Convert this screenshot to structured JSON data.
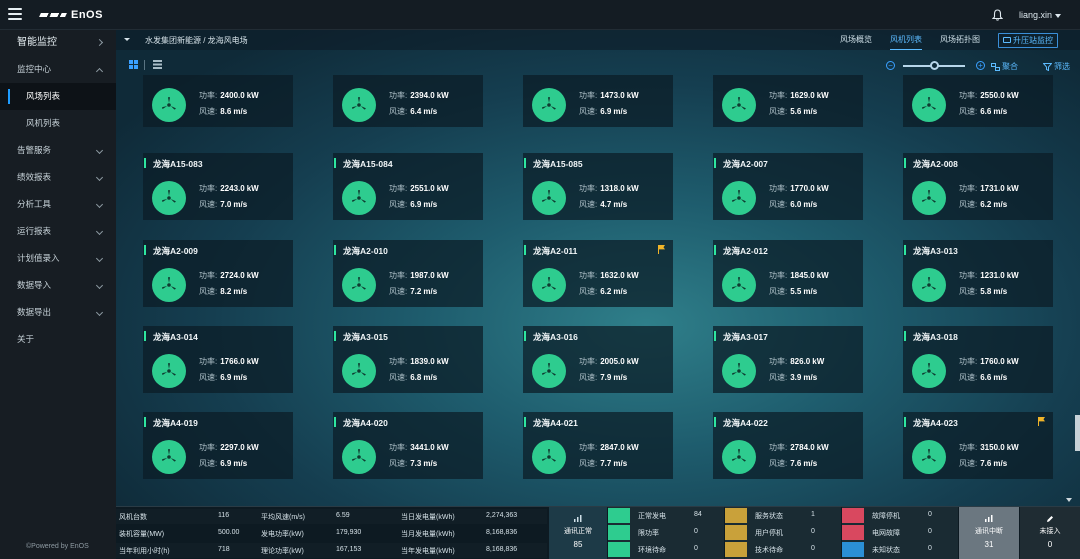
{
  "app": {
    "logo": "EnOS",
    "user": "liang.xin"
  },
  "sidebar": {
    "items": [
      {
        "label": "智能监控",
        "level": "top",
        "chevron": "right"
      },
      {
        "label": "监控中心",
        "level": "group",
        "chevron": "up"
      },
      {
        "label": "风场列表",
        "level": "sub",
        "active": true
      },
      {
        "label": "风机列表",
        "level": "sub"
      },
      {
        "label": "告警服务",
        "level": "group",
        "chevron": "down"
      },
      {
        "label": "绩效报表",
        "level": "group",
        "chevron": "down"
      },
      {
        "label": "分析工具",
        "level": "group",
        "chevron": "down"
      },
      {
        "label": "运行报表",
        "level": "group",
        "chevron": "down"
      },
      {
        "label": "计划值录入",
        "level": "group",
        "chevron": "down"
      },
      {
        "label": "数据导入",
        "level": "group",
        "chevron": "down"
      },
      {
        "label": "数据导出",
        "level": "group",
        "chevron": "down"
      },
      {
        "label": "关于",
        "level": "group"
      }
    ],
    "powered": "©Powered by EnOS"
  },
  "header": {
    "breadcrumb": "水发集团新能源 / 龙海风电场",
    "tabs": [
      {
        "label": "风场概览",
        "active": false
      },
      {
        "label": "风机列表",
        "active": true
      },
      {
        "label": "风场拓扑图",
        "active": false
      }
    ],
    "station_button": "升压站监控"
  },
  "toolbar": {
    "group_label": "聚合",
    "filter_label": "筛选"
  },
  "labels": {
    "power": "功率:",
    "wind": "风速:",
    "power_unit": "kW",
    "wind_unit": "m/s"
  },
  "turbines": [
    {
      "name": "",
      "power": "2400.0",
      "wind": "8.6",
      "flag": false
    },
    {
      "name": "",
      "power": "2394.0",
      "wind": "6.4",
      "flag": false
    },
    {
      "name": "",
      "power": "1473.0",
      "wind": "6.9",
      "flag": false
    },
    {
      "name": "",
      "power": "1629.0",
      "wind": "5.6",
      "flag": false
    },
    {
      "name": "",
      "power": "2550.0",
      "wind": "6.6",
      "flag": false
    },
    {
      "name": "龙海A15-083",
      "power": "2243.0",
      "wind": "7.0",
      "flag": false
    },
    {
      "name": "龙海A15-084",
      "power": "2551.0",
      "wind": "6.9",
      "flag": false
    },
    {
      "name": "龙海A15-085",
      "power": "1318.0",
      "wind": "4.7",
      "flag": false
    },
    {
      "name": "龙海A2-007",
      "power": "1770.0",
      "wind": "6.0",
      "flag": false
    },
    {
      "name": "龙海A2-008",
      "power": "1731.0",
      "wind": "6.2",
      "flag": false
    },
    {
      "name": "龙海A2-009",
      "power": "2724.0",
      "wind": "8.2",
      "flag": false
    },
    {
      "name": "龙海A2-010",
      "power": "1987.0",
      "wind": "7.2",
      "flag": false
    },
    {
      "name": "龙海A2-011",
      "power": "1632.0",
      "wind": "6.2",
      "flag": true
    },
    {
      "name": "龙海A2-012",
      "power": "1845.0",
      "wind": "5.5",
      "flag": false
    },
    {
      "name": "龙海A3-013",
      "power": "1231.0",
      "wind": "5.8",
      "flag": false
    },
    {
      "name": "龙海A3-014",
      "power": "1766.0",
      "wind": "6.9",
      "flag": false
    },
    {
      "name": "龙海A3-015",
      "power": "1839.0",
      "wind": "6.8",
      "flag": false
    },
    {
      "name": "龙海A3-016",
      "power": "2005.0",
      "wind": "7.9",
      "flag": false
    },
    {
      "name": "龙海A3-017",
      "power": "826.0",
      "wind": "3.9",
      "flag": false
    },
    {
      "name": "龙海A3-018",
      "power": "1760.0",
      "wind": "6.6",
      "flag": false
    },
    {
      "name": "龙海A4-019",
      "power": "2297.0",
      "wind": "6.9",
      "flag": false
    },
    {
      "name": "龙海A4-020",
      "power": "3441.0",
      "wind": "7.3",
      "flag": false
    },
    {
      "name": "龙海A4-021",
      "power": "2847.0",
      "wind": "7.7",
      "flag": false
    },
    {
      "name": "龙海A4-022",
      "power": "2784.0",
      "wind": "7.6",
      "flag": false
    },
    {
      "name": "龙海A4-023",
      "power": "3150.0",
      "wind": "7.6",
      "flag": true
    }
  ],
  "footer": {
    "stats": [
      [
        "风机台数",
        "116",
        "平均风速(m/s)",
        "6.59",
        "当日发电量(kWh)",
        "2,274,363"
      ],
      [
        "装机容量(MW)",
        "500.00",
        "发电功率(kW)",
        "179,930",
        "当月发电量(kWh)",
        "8,168,836"
      ],
      [
        "当年利用小时(h)",
        "718",
        "理论功率(kW)",
        "167,153",
        "当年发电量(kWh)",
        "8,168,836"
      ]
    ],
    "comm": {
      "label": "通讯正常",
      "value": "85"
    },
    "status_a": [
      {
        "label": "正常发电",
        "value": "84"
      },
      {
        "label": "限功率",
        "value": "0"
      },
      {
        "label": "环境待命",
        "value": "0"
      }
    ],
    "status_b": [
      {
        "label": "服务状态",
        "value": "1"
      },
      {
        "label": "用户停机",
        "value": "0"
      },
      {
        "label": "技术待命",
        "value": "0"
      }
    ],
    "status_c": [
      {
        "label": "故障停机",
        "value": "0"
      },
      {
        "label": "电网故障",
        "value": "0"
      },
      {
        "label": "未知状态",
        "value": "0"
      }
    ],
    "comm_break": {
      "label": "通讯中断",
      "value": "31"
    },
    "not_connected": {
      "label": "未接入",
      "value": "0"
    },
    "colors": {
      "green": "#2ecc8f",
      "gold": "#c9a13a",
      "red": "#d9485f",
      "blue": "#2b8fd6",
      "gray": "#6b7780"
    }
  }
}
